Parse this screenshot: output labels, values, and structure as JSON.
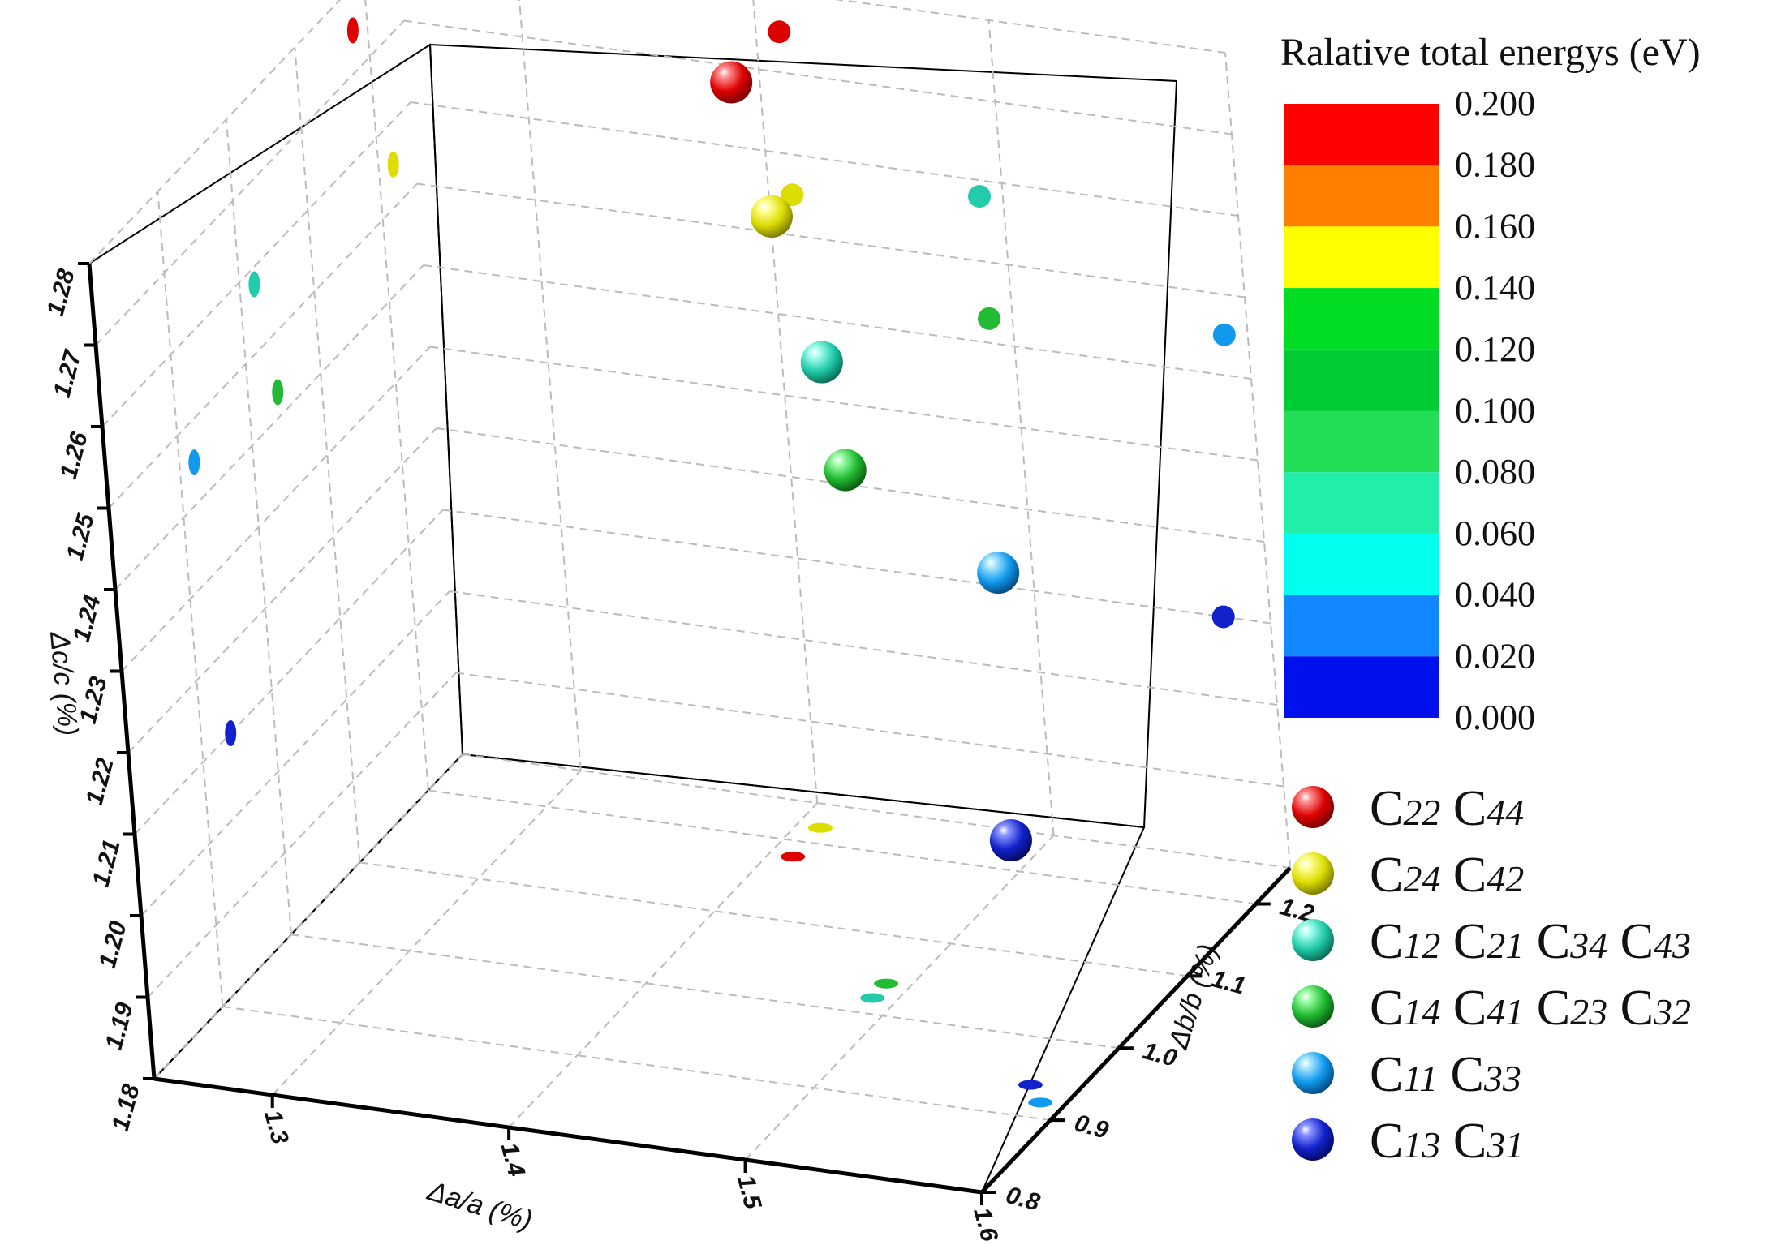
{
  "chart_data": {
    "type": "scatter",
    "subtype": "3d-scatter-with-projections",
    "xlabel": "Δa/a (%)",
    "ylabel": "Δb/b (%)",
    "zlabel": "Δc/c (%)",
    "x_ticks": [
      "1.3",
      "1.4",
      "1.5",
      "1.6"
    ],
    "y_ticks": [
      "0.8",
      "0.9",
      "1.0",
      "1.1",
      "1.2"
    ],
    "z_ticks": [
      "1.18",
      "1.19",
      "1.20",
      "1.21",
      "1.22",
      "1.23",
      "1.24",
      "1.25",
      "1.26",
      "1.27",
      "1.28"
    ],
    "xlim": [
      1.25,
      1.6
    ],
    "ylim": [
      0.8,
      1.25
    ],
    "zlim": [
      1.18,
      1.28
    ],
    "colorbar": {
      "title": "Ralative total energys (eV)",
      "ticks": [
        "0.200",
        "0.180",
        "0.160",
        "0.140",
        "0.120",
        "0.100",
        "0.080",
        "0.060",
        "0.040",
        "0.020",
        "0.000"
      ],
      "bands": [
        {
          "from": 0.18,
          "to": 0.2,
          "color": "#ff0000"
        },
        {
          "from": 0.16,
          "to": 0.18,
          "color": "#ff8000"
        },
        {
          "from": 0.14,
          "to": 0.16,
          "color": "#ffff00"
        },
        {
          "from": 0.12,
          "to": 0.14,
          "color": "#00dd22"
        },
        {
          "from": 0.1,
          "to": 0.12,
          "color": "#00cc33"
        },
        {
          "from": 0.08,
          "to": 0.1,
          "color": "#22dd55"
        },
        {
          "from": 0.06,
          "to": 0.08,
          "color": "#22eeaa"
        },
        {
          "from": 0.04,
          "to": 0.06,
          "color": "#00ffee"
        },
        {
          "from": 0.02,
          "to": 0.04,
          "color": "#1188ff"
        },
        {
          "from": 0.0,
          "to": 0.02,
          "color": "#0011ee"
        }
      ]
    },
    "series": [
      {
        "name": "C22 C44",
        "label_parts": [
          [
            "C",
            "22"
          ],
          [
            "C",
            "44"
          ]
        ],
        "color": "#dd0000",
        "highlight": "#ff9090",
        "dark": "#7a0000",
        "x": 1.41,
        "y": 1.18,
        "z": 1.275,
        "energy": 0.19
      },
      {
        "name": "C24 C42",
        "label_parts": [
          [
            "C",
            "24"
          ],
          [
            "C",
            "42"
          ]
        ],
        "color": "#dddd00",
        "highlight": "#ffff99",
        "dark": "#7a7a00",
        "x": 1.41,
        "y": 1.22,
        "z": 1.255,
        "energy": 0.15
      },
      {
        "name": "C12 C21 C34 C43",
        "label_parts": [
          [
            "C",
            "12"
          ],
          [
            "C",
            "21"
          ],
          [
            "C",
            "34"
          ],
          [
            "C",
            "43"
          ]
        ],
        "color": "#22ccaa",
        "highlight": "#aaffee",
        "dark": "#0a6b56",
        "x": 1.49,
        "y": 1.02,
        "z": 1.258,
        "energy": 0.065
      },
      {
        "name": "C14 C41 C23 C32",
        "label_parts": [
          [
            "C",
            "14"
          ],
          [
            "C",
            "41"
          ],
          [
            "C",
            "23"
          ],
          [
            "C",
            "32"
          ]
        ],
        "color": "#22bb33",
        "highlight": "#a0ffaa",
        "dark": "#0b5a12",
        "x": 1.49,
        "y": 1.04,
        "z": 1.243,
        "energy": 0.11
      },
      {
        "name": "C11 C33",
        "label_parts": [
          [
            "C",
            "11"
          ],
          [
            "C",
            "33"
          ]
        ],
        "color": "#1199ee",
        "highlight": "#a8e6ff",
        "dark": "#064a80",
        "x": 1.59,
        "y": 0.92,
        "z": 1.245,
        "energy": 0.03
      },
      {
        "name": "C13 C31",
        "label_parts": [
          [
            "C",
            "13"
          ],
          [
            "C",
            "31"
          ]
        ],
        "color": "#1122cc",
        "highlight": "#8a94ff",
        "dark": "#050a60",
        "x": 1.58,
        "y": 0.94,
        "z": 1.21,
        "energy": 0.01
      }
    ]
  }
}
